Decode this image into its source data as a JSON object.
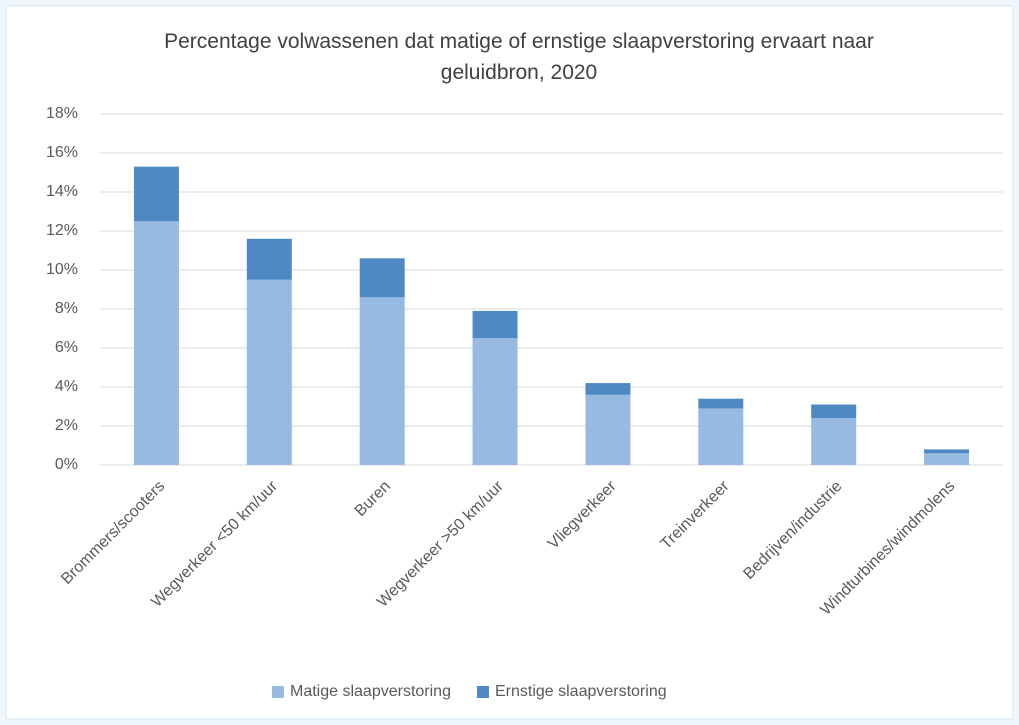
{
  "chart_data": {
    "type": "stacked_bar",
    "title": "Percentage volwassenen dat matige of ernstige slaapverstoring ervaart naar geluidbron, 2020",
    "categories": [
      "Brommers/scooters",
      "Wegverkeer <50 km/uur",
      "Buren",
      "Wegverkeer >50 km/uur",
      "Vliegverkeer",
      "Treinverkeer",
      "Bedrijven/industrie",
      "Windturbines/windmolens"
    ],
    "series": [
      {
        "name": "Matige slaapverstoring",
        "color": "#97bae2",
        "values": [
          12.5,
          9.5,
          8.6,
          6.5,
          3.6,
          2.9,
          2.4,
          0.6
        ]
      },
      {
        "name": "Ernstige slaapverstoring",
        "color": "#4f89c3",
        "values": [
          2.8,
          2.1,
          2.0,
          1.4,
          0.6,
          0.5,
          0.7,
          0.2
        ]
      }
    ],
    "ylim": [
      0,
      18
    ],
    "yticks": [
      {
        "value": 0,
        "label": "0%"
      },
      {
        "value": 2,
        "label": "2%"
      },
      {
        "value": 4,
        "label": "4%"
      },
      {
        "value": 6,
        "label": "6%"
      },
      {
        "value": 8,
        "label": "8%"
      },
      {
        "value": 10,
        "label": "10%"
      },
      {
        "value": 12,
        "label": "12%"
      },
      {
        "value": 14,
        "label": "14%"
      },
      {
        "value": 16,
        "label": "16%"
      },
      {
        "value": 18,
        "label": "18%"
      }
    ],
    "grid": true,
    "legend": "bottom"
  }
}
